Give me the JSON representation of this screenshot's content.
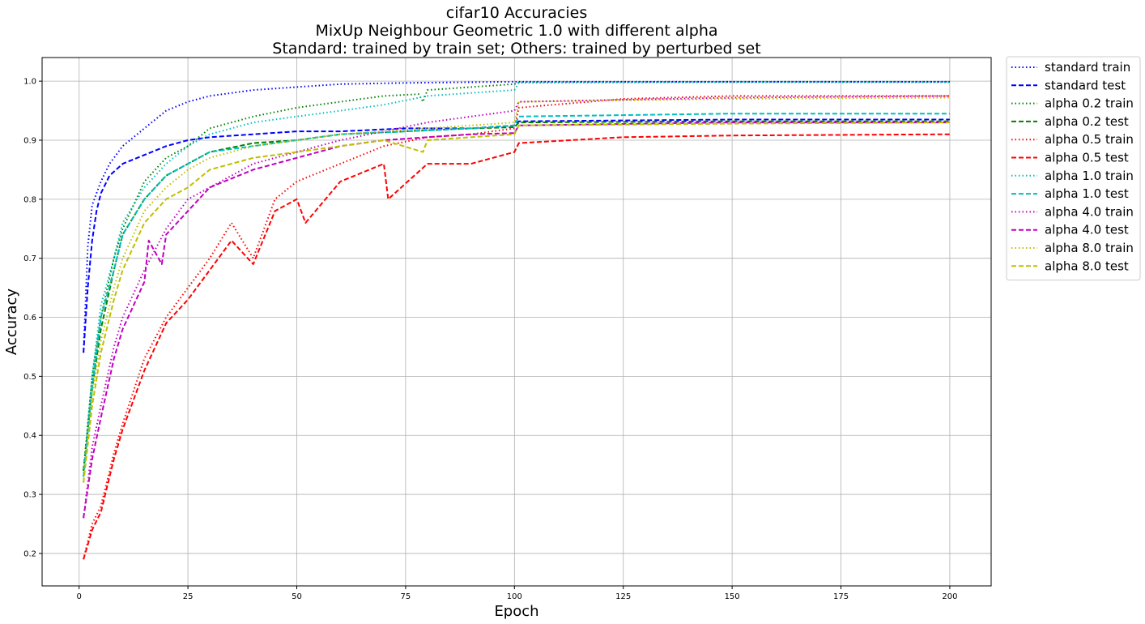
{
  "chart_data": {
    "type": "line",
    "title": [
      "cifar10 Accuracies",
      "MixUp Neighbour Geometric 1.0 with different alpha",
      "Standard: trained by train set; Others: trained by perturbed set"
    ],
    "xlabel": "Epoch",
    "ylabel": "Accuracy",
    "xlim": [
      -8.5,
      209.5
    ],
    "ylim": [
      0.145,
      1.04
    ],
    "xticks": [
      0,
      25,
      50,
      75,
      100,
      125,
      150,
      175,
      200
    ],
    "yticks": [
      0.2,
      0.3,
      0.4,
      0.5,
      0.6,
      0.7,
      0.8,
      0.9,
      1.0
    ],
    "grid": true,
    "legend_position": "outside-right-top",
    "series": [
      {
        "name": "standard train",
        "color": "#0000ff",
        "dash": "dotted",
        "points": [
          [
            1,
            0.54
          ],
          [
            2,
            0.72
          ],
          [
            3,
            0.79
          ],
          [
            5,
            0.83
          ],
          [
            7,
            0.86
          ],
          [
            10,
            0.89
          ],
          [
            15,
            0.92
          ],
          [
            20,
            0.95
          ],
          [
            25,
            0.965
          ],
          [
            30,
            0.975
          ],
          [
            40,
            0.985
          ],
          [
            50,
            0.99
          ],
          [
            60,
            0.995
          ],
          [
            75,
            0.997
          ],
          [
            100,
            0.999
          ],
          [
            150,
            0.999
          ],
          [
            200,
            0.999
          ]
        ]
      },
      {
        "name": "standard test",
        "color": "#0000ff",
        "dash": "dashed",
        "points": [
          [
            1,
            0.54
          ],
          [
            2,
            0.65
          ],
          [
            3,
            0.73
          ],
          [
            4,
            0.78
          ],
          [
            5,
            0.81
          ],
          [
            7,
            0.84
          ],
          [
            10,
            0.86
          ],
          [
            15,
            0.875
          ],
          [
            20,
            0.89
          ],
          [
            25,
            0.9
          ],
          [
            30,
            0.905
          ],
          [
            40,
            0.91
          ],
          [
            50,
            0.915
          ],
          [
            60,
            0.915
          ],
          [
            75,
            0.92
          ],
          [
            90,
            0.92
          ],
          [
            100,
            0.925
          ],
          [
            101,
            0.932
          ],
          [
            150,
            0.935
          ],
          [
            200,
            0.935
          ]
        ]
      },
      {
        "name": "alpha 0.2 train",
        "color": "#008000",
        "dash": "dotted",
        "points": [
          [
            1,
            0.34
          ],
          [
            3,
            0.5
          ],
          [
            5,
            0.6
          ],
          [
            8,
            0.7
          ],
          [
            10,
            0.75
          ],
          [
            15,
            0.83
          ],
          [
            20,
            0.87
          ],
          [
            25,
            0.89
          ],
          [
            30,
            0.92
          ],
          [
            40,
            0.94
          ],
          [
            50,
            0.955
          ],
          [
            60,
            0.965
          ],
          [
            70,
            0.975
          ],
          [
            78,
            0.978
          ],
          [
            79,
            0.965
          ],
          [
            80,
            0.985
          ],
          [
            90,
            0.99
          ],
          [
            100,
            0.995
          ],
          [
            101,
            0.998
          ],
          [
            150,
            0.999
          ],
          [
            200,
            0.999
          ]
        ]
      },
      {
        "name": "alpha 0.2 test",
        "color": "#008000",
        "dash": "dashed",
        "points": [
          [
            1,
            0.34
          ],
          [
            3,
            0.48
          ],
          [
            5,
            0.58
          ],
          [
            8,
            0.68
          ],
          [
            10,
            0.74
          ],
          [
            15,
            0.8
          ],
          [
            20,
            0.84
          ],
          [
            25,
            0.86
          ],
          [
            30,
            0.88
          ],
          [
            40,
            0.895
          ],
          [
            50,
            0.9
          ],
          [
            60,
            0.91
          ],
          [
            75,
            0.915
          ],
          [
            90,
            0.92
          ],
          [
            100,
            0.922
          ],
          [
            101,
            0.93
          ],
          [
            150,
            0.932
          ],
          [
            200,
            0.932
          ]
        ]
      },
      {
        "name": "alpha 0.5 train",
        "color": "#ff0000",
        "dash": "dotted",
        "points": [
          [
            1,
            0.19
          ],
          [
            3,
            0.25
          ],
          [
            5,
            0.28
          ],
          [
            8,
            0.37
          ],
          [
            10,
            0.42
          ],
          [
            15,
            0.53
          ],
          [
            20,
            0.6
          ],
          [
            25,
            0.65
          ],
          [
            30,
            0.7
          ],
          [
            35,
            0.76
          ],
          [
            40,
            0.7
          ],
          [
            45,
            0.8
          ],
          [
            50,
            0.83
          ],
          [
            60,
            0.86
          ],
          [
            70,
            0.89
          ],
          [
            80,
            0.905
          ],
          [
            90,
            0.91
          ],
          [
            100,
            0.92
          ],
          [
            101,
            0.955
          ],
          [
            125,
            0.97
          ],
          [
            150,
            0.975
          ],
          [
            200,
            0.975
          ]
        ]
      },
      {
        "name": "alpha 0.5 test",
        "color": "#ff0000",
        "dash": "dashed",
        "points": [
          [
            1,
            0.19
          ],
          [
            3,
            0.24
          ],
          [
            5,
            0.27
          ],
          [
            8,
            0.36
          ],
          [
            10,
            0.41
          ],
          [
            15,
            0.51
          ],
          [
            20,
            0.59
          ],
          [
            25,
            0.63
          ],
          [
            30,
            0.68
          ],
          [
            35,
            0.73
          ],
          [
            40,
            0.69
          ],
          [
            45,
            0.78
          ],
          [
            50,
            0.8
          ],
          [
            52,
            0.76
          ],
          [
            60,
            0.83
          ],
          [
            70,
            0.86
          ],
          [
            71,
            0.8
          ],
          [
            80,
            0.86
          ],
          [
            90,
            0.86
          ],
          [
            100,
            0.88
          ],
          [
            101,
            0.895
          ],
          [
            125,
            0.905
          ],
          [
            150,
            0.908
          ],
          [
            200,
            0.91
          ]
        ]
      },
      {
        "name": "alpha 1.0 train",
        "color": "#00bfbf",
        "dash": "dotted",
        "points": [
          [
            1,
            0.33
          ],
          [
            3,
            0.5
          ],
          [
            5,
            0.62
          ],
          [
            8,
            0.7
          ],
          [
            10,
            0.76
          ],
          [
            15,
            0.82
          ],
          [
            20,
            0.86
          ],
          [
            25,
            0.89
          ],
          [
            30,
            0.91
          ],
          [
            40,
            0.93
          ],
          [
            50,
            0.94
          ],
          [
            60,
            0.95
          ],
          [
            70,
            0.96
          ],
          [
            80,
            0.975
          ],
          [
            90,
            0.98
          ],
          [
            100,
            0.985
          ],
          [
            101,
            0.997
          ],
          [
            150,
            0.998
          ],
          [
            200,
            0.998
          ]
        ]
      },
      {
        "name": "alpha 1.0 test",
        "color": "#00bfbf",
        "dash": "dashed",
        "points": [
          [
            1,
            0.33
          ],
          [
            3,
            0.48
          ],
          [
            5,
            0.6
          ],
          [
            8,
            0.68
          ],
          [
            10,
            0.74
          ],
          [
            15,
            0.8
          ],
          [
            20,
            0.84
          ],
          [
            25,
            0.86
          ],
          [
            30,
            0.88
          ],
          [
            40,
            0.89
          ],
          [
            50,
            0.9
          ],
          [
            60,
            0.91
          ],
          [
            75,
            0.915
          ],
          [
            90,
            0.92
          ],
          [
            100,
            0.925
          ],
          [
            101,
            0.94
          ],
          [
            150,
            0.945
          ],
          [
            200,
            0.945
          ]
        ]
      },
      {
        "name": "alpha 4.0 train",
        "color": "#bf00bf",
        "dash": "dotted",
        "points": [
          [
            1,
            0.26
          ],
          [
            3,
            0.38
          ],
          [
            5,
            0.45
          ],
          [
            8,
            0.55
          ],
          [
            10,
            0.6
          ],
          [
            15,
            0.68
          ],
          [
            20,
            0.75
          ],
          [
            25,
            0.8
          ],
          [
            30,
            0.82
          ],
          [
            40,
            0.86
          ],
          [
            50,
            0.88
          ],
          [
            60,
            0.9
          ],
          [
            70,
            0.915
          ],
          [
            80,
            0.93
          ],
          [
            90,
            0.94
          ],
          [
            100,
            0.95
          ],
          [
            101,
            0.965
          ],
          [
            150,
            0.972
          ],
          [
            200,
            0.975
          ]
        ]
      },
      {
        "name": "alpha 4.0 test",
        "color": "#bf00bf",
        "dash": "dashed",
        "points": [
          [
            1,
            0.26
          ],
          [
            3,
            0.36
          ],
          [
            5,
            0.43
          ],
          [
            8,
            0.53
          ],
          [
            10,
            0.58
          ],
          [
            15,
            0.66
          ],
          [
            16,
            0.73
          ],
          [
            19,
            0.69
          ],
          [
            20,
            0.74
          ],
          [
            25,
            0.78
          ],
          [
            30,
            0.82
          ],
          [
            40,
            0.85
          ],
          [
            50,
            0.87
          ],
          [
            60,
            0.89
          ],
          [
            70,
            0.9
          ],
          [
            80,
            0.905
          ],
          [
            90,
            0.91
          ],
          [
            100,
            0.912
          ],
          [
            101,
            0.925
          ],
          [
            150,
            0.93
          ],
          [
            200,
            0.93
          ]
        ]
      },
      {
        "name": "alpha 8.0 train",
        "color": "#bfbf00",
        "dash": "dotted",
        "points": [
          [
            1,
            0.32
          ],
          [
            3,
            0.47
          ],
          [
            5,
            0.56
          ],
          [
            8,
            0.65
          ],
          [
            10,
            0.7
          ],
          [
            15,
            0.78
          ],
          [
            20,
            0.82
          ],
          [
            25,
            0.85
          ],
          [
            30,
            0.87
          ],
          [
            40,
            0.89
          ],
          [
            50,
            0.9
          ],
          [
            60,
            0.91
          ],
          [
            70,
            0.915
          ],
          [
            80,
            0.92
          ],
          [
            90,
            0.925
          ],
          [
            100,
            0.93
          ],
          [
            101,
            0.965
          ],
          [
            150,
            0.97
          ],
          [
            200,
            0.972
          ]
        ]
      },
      {
        "name": "alpha 8.0 test",
        "color": "#bfbf00",
        "dash": "dashed",
        "points": [
          [
            1,
            0.32
          ],
          [
            3,
            0.45
          ],
          [
            5,
            0.54
          ],
          [
            8,
            0.63
          ],
          [
            10,
            0.68
          ],
          [
            15,
            0.76
          ],
          [
            20,
            0.8
          ],
          [
            25,
            0.82
          ],
          [
            30,
            0.85
          ],
          [
            40,
            0.87
          ],
          [
            50,
            0.88
          ],
          [
            60,
            0.89
          ],
          [
            70,
            0.9
          ],
          [
            79,
            0.88
          ],
          [
            80,
            0.9
          ],
          [
            90,
            0.905
          ],
          [
            100,
            0.91
          ],
          [
            101,
            0.925
          ],
          [
            150,
            0.928
          ],
          [
            200,
            0.93
          ]
        ]
      }
    ]
  }
}
